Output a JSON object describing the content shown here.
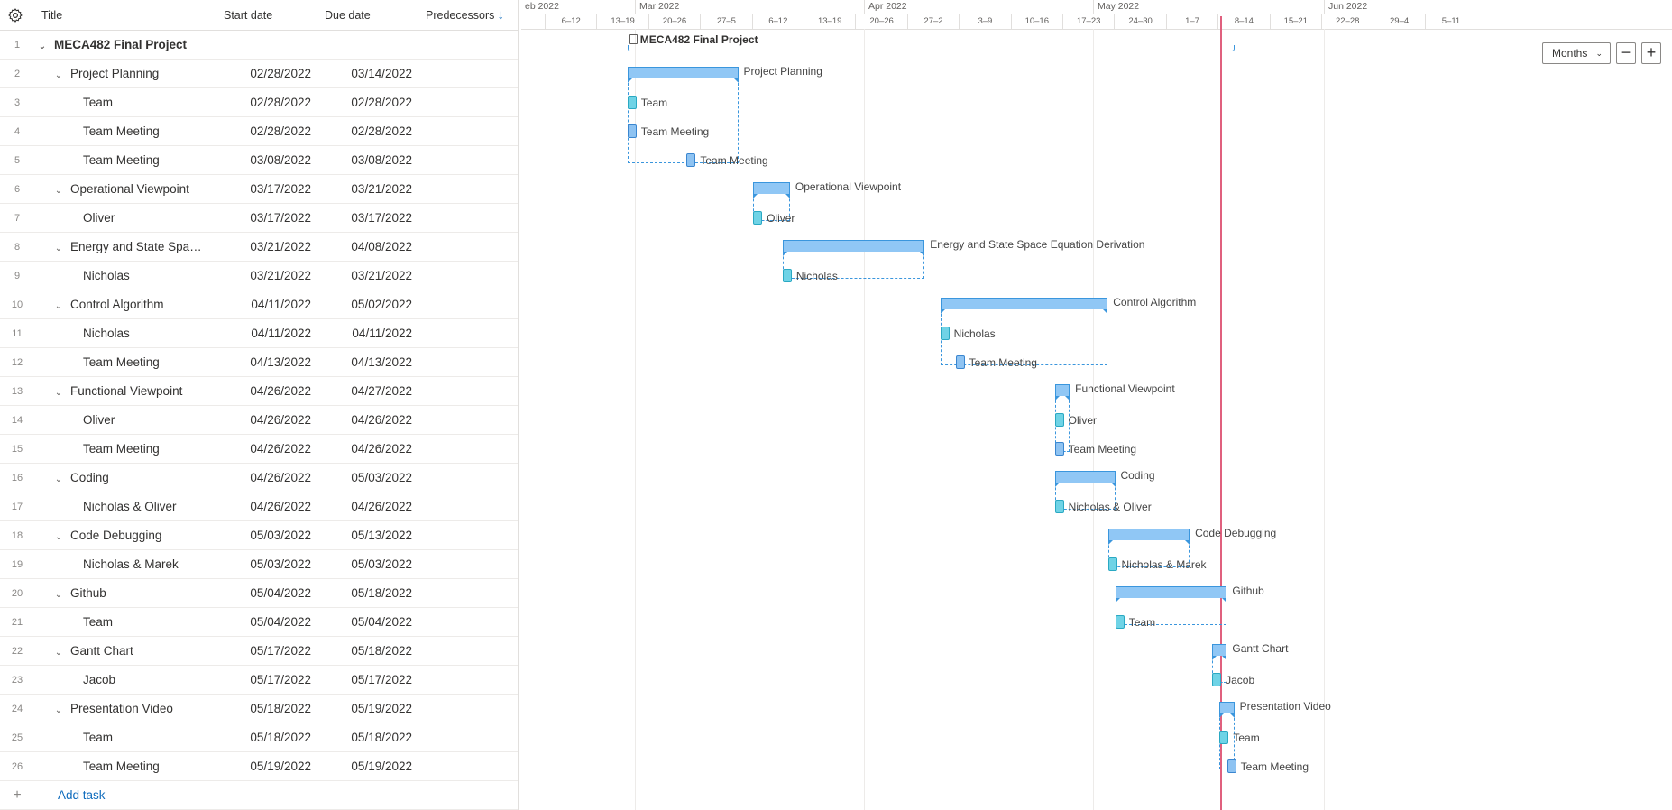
{
  "grid": {
    "header": {
      "title": "Title",
      "start": "Start date",
      "due": "Due date",
      "pred": "Predecessors",
      "sort_icon": "↓"
    },
    "rows": [
      {
        "n": "1",
        "title": "MECA482 Final Project",
        "start": "",
        "due": "",
        "level": 0,
        "group": true
      },
      {
        "n": "2",
        "title": "Project Planning",
        "start": "02/28/2022",
        "due": "03/14/2022",
        "level": 1,
        "group": true
      },
      {
        "n": "3",
        "title": "Team",
        "start": "02/28/2022",
        "due": "02/28/2022",
        "level": 2,
        "group": false
      },
      {
        "n": "4",
        "title": "Team Meeting",
        "start": "02/28/2022",
        "due": "02/28/2022",
        "level": 2,
        "group": false
      },
      {
        "n": "5",
        "title": "Team Meeting",
        "start": "03/08/2022",
        "due": "03/08/2022",
        "level": 2,
        "group": false
      },
      {
        "n": "6",
        "title": "Operational Viewpoint",
        "start": "03/17/2022",
        "due": "03/21/2022",
        "level": 1,
        "group": true
      },
      {
        "n": "7",
        "title": "Oliver",
        "start": "03/17/2022",
        "due": "03/17/2022",
        "level": 2,
        "group": false
      },
      {
        "n": "8",
        "title": "Energy and State Spa…",
        "start": "03/21/2022",
        "due": "04/08/2022",
        "level": 1,
        "group": true
      },
      {
        "n": "9",
        "title": "Nicholas",
        "start": "03/21/2022",
        "due": "03/21/2022",
        "level": 2,
        "group": false
      },
      {
        "n": "10",
        "title": "Control Algorithm",
        "start": "04/11/2022",
        "due": "05/02/2022",
        "level": 1,
        "group": true
      },
      {
        "n": "11",
        "title": "Nicholas",
        "start": "04/11/2022",
        "due": "04/11/2022",
        "level": 2,
        "group": false
      },
      {
        "n": "12",
        "title": "Team Meeting",
        "start": "04/13/2022",
        "due": "04/13/2022",
        "level": 2,
        "group": false
      },
      {
        "n": "13",
        "title": "Functional Viewpoint",
        "start": "04/26/2022",
        "due": "04/27/2022",
        "level": 1,
        "group": true
      },
      {
        "n": "14",
        "title": "Oliver",
        "start": "04/26/2022",
        "due": "04/26/2022",
        "level": 2,
        "group": false
      },
      {
        "n": "15",
        "title": "Team Meeting",
        "start": "04/26/2022",
        "due": "04/26/2022",
        "level": 2,
        "group": false
      },
      {
        "n": "16",
        "title": "Coding",
        "start": "04/26/2022",
        "due": "05/03/2022",
        "level": 1,
        "group": true
      },
      {
        "n": "17",
        "title": "Nicholas & Oliver",
        "start": "04/26/2022",
        "due": "04/26/2022",
        "level": 2,
        "group": false
      },
      {
        "n": "18",
        "title": "Code Debugging",
        "start": "05/03/2022",
        "due": "05/13/2022",
        "level": 1,
        "group": true
      },
      {
        "n": "19",
        "title": "Nicholas & Marek",
        "start": "05/03/2022",
        "due": "05/03/2022",
        "level": 2,
        "group": false
      },
      {
        "n": "20",
        "title": "Github",
        "start": "05/04/2022",
        "due": "05/18/2022",
        "level": 1,
        "group": true
      },
      {
        "n": "21",
        "title": "Team",
        "start": "05/04/2022",
        "due": "05/04/2022",
        "level": 2,
        "group": false
      },
      {
        "n": "22",
        "title": "Gantt Chart",
        "start": "05/17/2022",
        "due": "05/18/2022",
        "level": 1,
        "group": true
      },
      {
        "n": "23",
        "title": "Jacob",
        "start": "05/17/2022",
        "due": "05/17/2022",
        "level": 2,
        "group": false
      },
      {
        "n": "24",
        "title": "Presentation Video",
        "start": "05/18/2022",
        "due": "05/19/2022",
        "level": 1,
        "group": true
      },
      {
        "n": "25",
        "title": "Team",
        "start": "05/18/2022",
        "due": "05/18/2022",
        "level": 2,
        "group": false
      },
      {
        "n": "26",
        "title": "Team Meeting",
        "start": "05/19/2022",
        "due": "05/19/2022",
        "level": 2,
        "group": false
      }
    ],
    "add_task": {
      "icon": "+",
      "label": "Add task"
    }
  },
  "timeline": {
    "months": [
      "eb 2022",
      "Mar 2022",
      "Apr 2022",
      "May 2022",
      "Jun 2022"
    ],
    "weeks": [
      "6–12",
      "13–19",
      "20–26",
      "27–5",
      "6–12",
      "13–19",
      "20–26",
      "27–2",
      "3–9",
      "10–16",
      "17–23",
      "24–30",
      "1–7",
      "8–14",
      "15–21",
      "22–28",
      "29–4",
      "5–11"
    ],
    "project_label": "MECA482 Final Project",
    "task_labels": [
      "Project Planning",
      "Team",
      "Team Meeting",
      "Team Meeting",
      "Operational Viewpoint",
      "Oliver",
      "Energy and State Space Equation Derivation",
      "Nicholas",
      "Control Algorithm",
      "Nicholas",
      "Team Meeting",
      "Functional Viewpoint",
      "Oliver",
      "Team Meeting",
      "Coding",
      "Nicholas & Oliver",
      "Code Debugging",
      "Nicholas & Marek",
      "Github",
      "Team",
      "Gantt Chart",
      "Jacob",
      "Presentation Video",
      "Team",
      "Team Meeting"
    ],
    "zoom": {
      "label": "Months",
      "caret": "⌄",
      "minus": "−",
      "plus": "+"
    }
  },
  "colors": {
    "accent": "#0f6cbd",
    "bar": "#90c7f5",
    "task_cyan": "#6fd3e6",
    "today": "#e0607e"
  }
}
